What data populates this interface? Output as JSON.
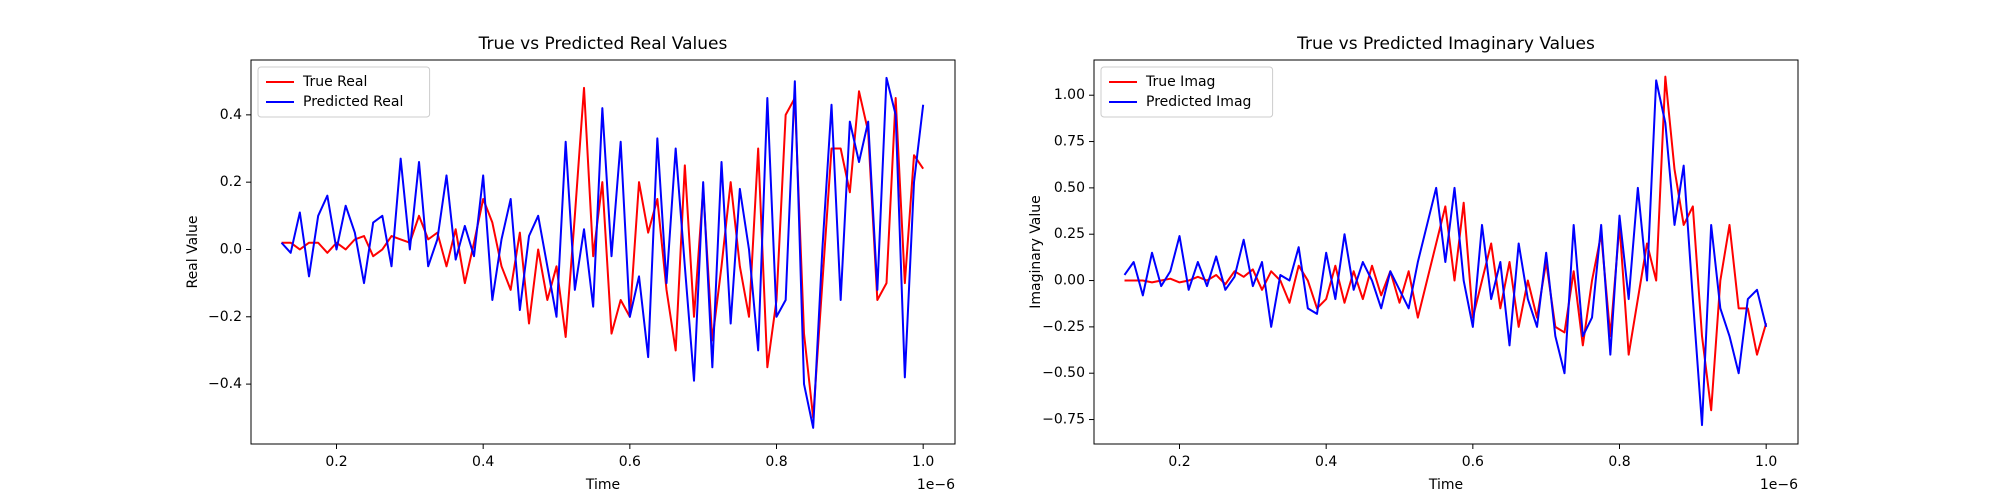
{
  "chart_data": [
    {
      "type": "line",
      "title": "True vs Predicted Real Values",
      "x_label": "Time",
      "y_label": "Real Value",
      "x_offset_label": "1e−6",
      "legend": "upper left",
      "grid": false,
      "x": [
        0.125,
        0.1375,
        0.15,
        0.1625,
        0.175,
        0.1875,
        0.2,
        0.2125,
        0.225,
        0.2375,
        0.25,
        0.2625,
        0.275,
        0.2875,
        0.3,
        0.3125,
        0.325,
        0.3375,
        0.35,
        0.3625,
        0.375,
        0.3875,
        0.4,
        0.4125,
        0.425,
        0.4375,
        0.45,
        0.4625,
        0.475,
        0.4875,
        0.5,
        0.5125,
        0.525,
        0.5375,
        0.55,
        0.5625,
        0.575,
        0.5875,
        0.6,
        0.6125,
        0.625,
        0.6375,
        0.65,
        0.6625,
        0.675,
        0.6875,
        0.7,
        0.7125,
        0.725,
        0.7375,
        0.75,
        0.7625,
        0.775,
        0.7875,
        0.8,
        0.8125,
        0.825,
        0.8375,
        0.85,
        0.8625,
        0.875,
        0.8875,
        0.9,
        0.9125,
        0.925,
        0.9375,
        0.95,
        0.9625,
        0.975,
        0.9875,
        1.0
      ],
      "series": [
        {
          "name": "True Real",
          "color": "#ff0000",
          "values": [
            0.02,
            0.02,
            0.0,
            0.02,
            0.02,
            -0.01,
            0.02,
            0.0,
            0.03,
            0.04,
            -0.02,
            0.0,
            0.04,
            0.03,
            0.02,
            0.1,
            0.03,
            0.05,
            -0.05,
            0.06,
            -0.1,
            0.02,
            0.15,
            0.08,
            -0.05,
            -0.12,
            0.05,
            -0.22,
            0.0,
            -0.15,
            -0.05,
            -0.26,
            0.1,
            0.48,
            -0.02,
            0.2,
            -0.25,
            -0.15,
            -0.2,
            0.2,
            0.05,
            0.15,
            -0.12,
            -0.3,
            0.25,
            -0.2,
            0.18,
            -0.27,
            -0.05,
            0.2,
            -0.05,
            -0.2,
            0.3,
            -0.35,
            -0.15,
            0.4,
            0.45,
            -0.25,
            -0.5,
            -0.1,
            0.3,
            0.3,
            0.17,
            0.47,
            0.35,
            -0.15,
            -0.1,
            0.45,
            -0.1,
            0.28,
            0.24
          ]
        },
        {
          "name": "Predicted Real",
          "color": "#0000ff",
          "values": [
            0.02,
            -0.01,
            0.11,
            -0.08,
            0.1,
            0.16,
            0.0,
            0.13,
            0.05,
            -0.1,
            0.08,
            0.1,
            -0.05,
            0.27,
            0.0,
            0.26,
            -0.05,
            0.03,
            0.22,
            -0.03,
            0.07,
            -0.02,
            0.22,
            -0.15,
            0.03,
            0.15,
            -0.18,
            0.04,
            0.1,
            -0.05,
            -0.2,
            0.32,
            -0.12,
            0.06,
            -0.17,
            0.42,
            -0.02,
            0.32,
            -0.2,
            -0.08,
            -0.32,
            0.33,
            -0.1,
            0.3,
            -0.05,
            -0.39,
            0.2,
            -0.35,
            0.26,
            -0.22,
            0.18,
            0.0,
            -0.3,
            0.45,
            -0.2,
            -0.15,
            0.5,
            -0.4,
            -0.53,
            0.0,
            0.43,
            -0.15,
            0.38,
            0.26,
            0.38,
            -0.12,
            0.51,
            0.4,
            -0.38,
            0.2,
            0.43
          ]
        }
      ],
      "xlim": [
        0.0834,
        1.0434
      ],
      "ylim": [
        -0.578,
        0.563
      ],
      "xticks": [
        0.2,
        0.4,
        0.6,
        0.8,
        {
          "value": 1.0,
          "label": "1.0"
        }
      ],
      "yticks": [
        {
          "value": -0.4,
          "label": "−0.4"
        },
        {
          "value": -0.2,
          "label": "−0.2"
        },
        {
          "value": 0,
          "label": "0.0"
        },
        0.2,
        0.4
      ]
    },
    {
      "type": "line",
      "title": "True vs Predicted Imaginary Values",
      "x_label": "Time",
      "y_label": "Imaginary Value",
      "x_offset_label": "1e−6",
      "legend": "upper left",
      "grid": false,
      "x": [
        0.125,
        0.1375,
        0.15,
        0.1625,
        0.175,
        0.1875,
        0.2,
        0.2125,
        0.225,
        0.2375,
        0.25,
        0.2625,
        0.275,
        0.2875,
        0.3,
        0.3125,
        0.325,
        0.3375,
        0.35,
        0.3625,
        0.375,
        0.3875,
        0.4,
        0.4125,
        0.425,
        0.4375,
        0.45,
        0.4625,
        0.475,
        0.4875,
        0.5,
        0.5125,
        0.525,
        0.5375,
        0.55,
        0.5625,
        0.575,
        0.5875,
        0.6,
        0.6125,
        0.625,
        0.6375,
        0.65,
        0.6625,
        0.675,
        0.6875,
        0.7,
        0.7125,
        0.725,
        0.7375,
        0.75,
        0.7625,
        0.775,
        0.7875,
        0.8,
        0.8125,
        0.825,
        0.8375,
        0.85,
        0.8625,
        0.875,
        0.8875,
        0.9,
        0.9125,
        0.925,
        0.9375,
        0.95,
        0.9625,
        0.975,
        0.9875,
        1.0
      ],
      "series": [
        {
          "name": "True Imag",
          "color": "#ff0000",
          "values": [
            0.0,
            0.0,
            0.0,
            -0.01,
            0.0,
            0.01,
            -0.01,
            0.0,
            0.02,
            0.0,
            0.03,
            -0.02,
            0.05,
            0.02,
            0.06,
            -0.05,
            0.05,
            0.0,
            -0.12,
            0.08,
            0.0,
            -0.15,
            -0.1,
            0.08,
            -0.12,
            0.05,
            -0.1,
            0.08,
            -0.08,
            0.05,
            -0.12,
            0.05,
            -0.2,
            0.0,
            0.2,
            0.4,
            0.0,
            0.42,
            -0.2,
            0.0,
            0.2,
            -0.15,
            0.1,
            -0.25,
            0.0,
            -0.2,
            0.1,
            -0.25,
            -0.28,
            0.05,
            -0.35,
            0.0,
            0.25,
            -0.3,
            0.3,
            -0.4,
            -0.1,
            0.2,
            0.0,
            1.1,
            0.6,
            0.3,
            0.4,
            -0.3,
            -0.7,
            0.0,
            0.3,
            -0.15,
            -0.15,
            -0.4,
            -0.23
          ]
        },
        {
          "name": "Predicted Imag",
          "color": "#0000ff",
          "values": [
            0.03,
            0.1,
            -0.08,
            0.15,
            -0.03,
            0.05,
            0.24,
            -0.05,
            0.1,
            -0.03,
            0.13,
            -0.05,
            0.02,
            0.22,
            -0.03,
            0.1,
            -0.25,
            0.03,
            0.0,
            0.18,
            -0.15,
            -0.18,
            0.15,
            -0.1,
            0.25,
            -0.05,
            0.1,
            0.0,
            -0.15,
            0.05,
            -0.05,
            -0.15,
            0.1,
            0.3,
            0.5,
            0.1,
            0.5,
            0.0,
            -0.25,
            0.3,
            -0.1,
            0.1,
            -0.35,
            0.2,
            -0.1,
            -0.25,
            0.15,
            -0.3,
            -0.5,
            0.3,
            -0.3,
            -0.2,
            0.3,
            -0.4,
            0.35,
            -0.1,
            0.5,
            0.0,
            1.08,
            0.85,
            0.3,
            0.62,
            -0.1,
            -0.78,
            0.3,
            -0.15,
            -0.3,
            -0.5,
            -0.1,
            -0.05,
            -0.25
          ]
        }
      ],
      "xlim": [
        0.0834,
        1.0434
      ],
      "ylim": [
        -0.882,
        1.19
      ],
      "xticks": [
        0.2,
        0.4,
        0.6,
        0.8,
        {
          "value": 1.0,
          "label": "1.0"
        }
      ],
      "yticks": [
        {
          "value": -0.75,
          "label": "−0.75"
        },
        {
          "value": -0.5,
          "label": "−0.50"
        },
        {
          "value": -0.25,
          "label": "−0.25"
        },
        {
          "value": 0,
          "label": "0.00"
        },
        0.25,
        {
          "value": 0.5,
          "label": "0.50"
        },
        0.75,
        {
          "value": 1.0,
          "label": "1.00"
        }
      ]
    }
  ]
}
